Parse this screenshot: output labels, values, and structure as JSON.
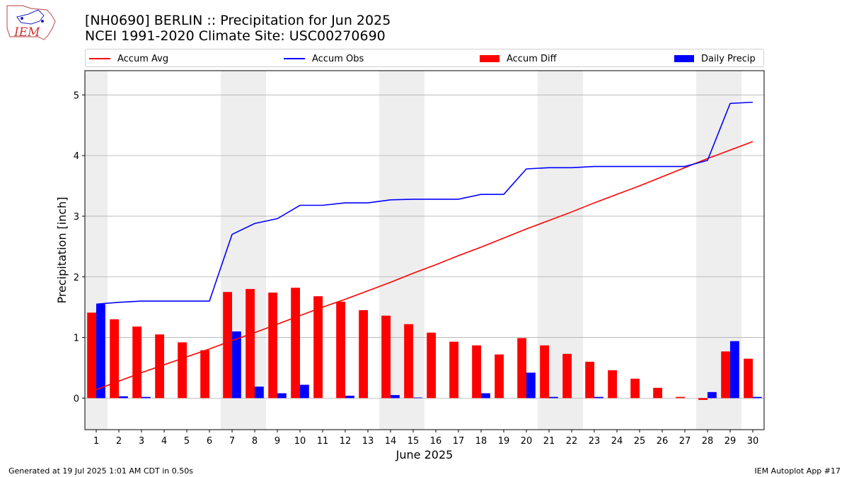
{
  "titles": {
    "line1": "[NH0690] BERLIN :: Precipitation for Jun 2025",
    "line2": "NCEI 1991-2020 Climate Site: USC00270690"
  },
  "logo": {
    "text": "IEM"
  },
  "legend": [
    {
      "label": "Accum Avg",
      "kind": "line",
      "color": "#ff0000"
    },
    {
      "label": "Accum Obs",
      "kind": "line",
      "color": "#0000ff"
    },
    {
      "label": "Accum Diff",
      "kind": "bar",
      "color": "#ff0000"
    },
    {
      "label": "Daily Precip",
      "kind": "bar",
      "color": "#0000ff"
    }
  ],
  "footer": {
    "left": "Generated at 19 Jul 2025 1:01 AM CDT in 0.50s",
    "right": "IEM Autoplot App #17"
  },
  "chart_data": {
    "type": "bar",
    "xlabel": "June 2025",
    "ylabel": "Precipitation [inch]",
    "x": [
      1,
      2,
      3,
      4,
      5,
      6,
      7,
      8,
      9,
      10,
      11,
      12,
      13,
      14,
      15,
      16,
      17,
      18,
      19,
      20,
      21,
      22,
      23,
      24,
      25,
      26,
      27,
      28,
      29,
      30
    ],
    "xlim": [
      0.5,
      30.5
    ],
    "ylim": [
      -0.52,
      5.4
    ],
    "yticks": [
      0,
      1,
      2,
      3,
      4,
      5
    ],
    "grid": "horizontal",
    "weekend_shading": [
      [
        0.5,
        1.5
      ],
      [
        6.5,
        8.5
      ],
      [
        13.5,
        15.5
      ],
      [
        20.5,
        22.5
      ],
      [
        27.5,
        29.5
      ]
    ],
    "series": [
      {
        "name": "Accum Avg",
        "kind": "line",
        "color": "#ff0000",
        "values": [
          0.14,
          0.28,
          0.42,
          0.55,
          0.68,
          0.81,
          0.95,
          1.08,
          1.22,
          1.36,
          1.5,
          1.63,
          1.77,
          1.91,
          2.06,
          2.2,
          2.35,
          2.49,
          2.64,
          2.79,
          2.93,
          3.07,
          3.22,
          3.36,
          3.5,
          3.65,
          3.8,
          3.95,
          4.09,
          4.23
        ]
      },
      {
        "name": "Accum Obs",
        "kind": "line",
        "color": "#0000ff",
        "values": [
          1.55,
          1.58,
          1.6,
          1.6,
          1.6,
          1.6,
          2.7,
          2.88,
          2.96,
          3.18,
          3.18,
          3.22,
          3.22,
          3.27,
          3.28,
          3.28,
          3.28,
          3.36,
          3.36,
          3.78,
          3.8,
          3.8,
          3.82,
          3.82,
          3.82,
          3.82,
          3.82,
          3.92,
          4.86,
          4.88
        ]
      },
      {
        "name": "Accum Diff",
        "kind": "bar",
        "color": "#ff0000",
        "values": [
          1.41,
          1.3,
          1.18,
          1.05,
          0.92,
          0.79,
          1.75,
          1.8,
          1.74,
          1.82,
          1.68,
          1.59,
          1.45,
          1.36,
          1.22,
          1.08,
          0.93,
          0.87,
          0.72,
          0.99,
          0.87,
          0.73,
          0.6,
          0.46,
          0.32,
          0.17,
          0.02,
          -0.03,
          0.77,
          0.65
        ]
      },
      {
        "name": "Daily Precip",
        "kind": "bar",
        "color": "#0000ff",
        "values": [
          1.55,
          0.03,
          0.02,
          0.0,
          0.0,
          0.0,
          1.1,
          0.19,
          0.08,
          0.22,
          0.0,
          0.04,
          0.0,
          0.05,
          0.01,
          0.0,
          0.0,
          0.08,
          0.0,
          0.42,
          0.02,
          0.0,
          0.02,
          0.0,
          0.0,
          0.0,
          0.0,
          0.1,
          0.94,
          0.02
        ]
      }
    ]
  }
}
